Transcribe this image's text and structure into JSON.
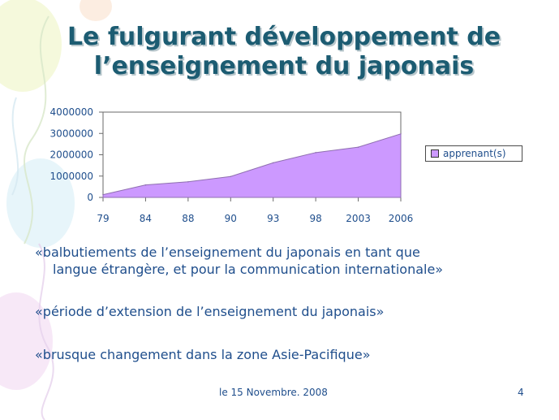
{
  "slide": {
    "title_line1": "Le fulgurant développement de",
    "title_line2": "l’enseignement du japonais",
    "bullets": [
      {
        "line1": "«balbutiements de l’enseignement du japonais en tant que",
        "line2": "langue étrangère, et pour la communication internationale»"
      },
      {
        "line1": "«période d’extension de l’enseignement du japonais»"
      },
      {
        "line1": "«brusque changement dans la zone Asie-Pacifique»"
      }
    ],
    "footer_date": "le 15 Novembre. 2008",
    "page_number": "4"
  },
  "colors": {
    "title": "#1c5c72",
    "text": "#1f4e8c",
    "area_fill": "#cc99ff",
    "area_stroke": "#8f6fb0"
  },
  "chart_data": {
    "type": "area",
    "categories": [
      "79",
      "84",
      "88",
      "90",
      "93",
      "98",
      "2003",
      "2006"
    ],
    "series": [
      {
        "name": "apprenant(s)",
        "values": [
          127000,
          585000,
          733000,
          981000,
          1623000,
          2102000,
          2356000,
          2979000
        ]
      }
    ],
    "y_ticks": [
      "4000000",
      "3000000",
      "2000000",
      "1000000",
      "0"
    ],
    "ylim": [
      0,
      4000000
    ],
    "legend_position": "right",
    "grid": false
  }
}
